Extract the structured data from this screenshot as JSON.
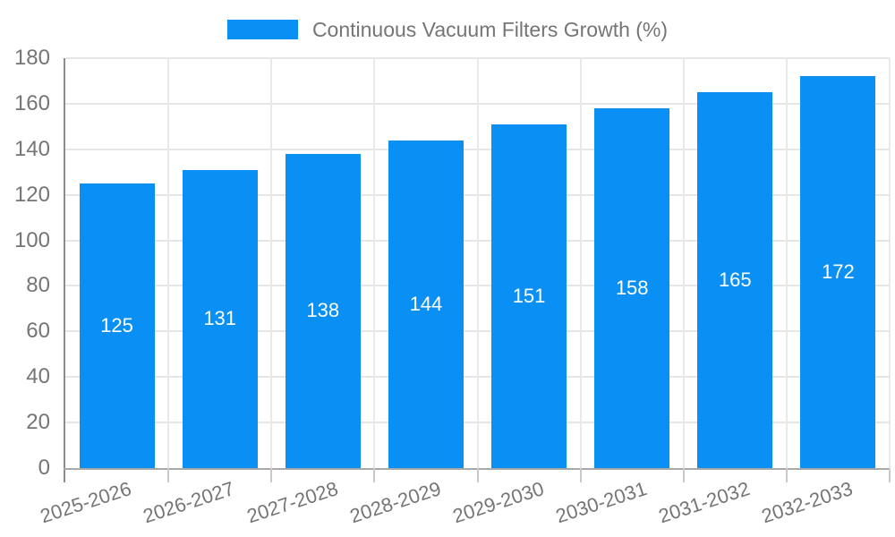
{
  "legend": {
    "label": "Continuous Vacuum Filters Growth (%)"
  },
  "chart_data": {
    "type": "bar",
    "title": "",
    "categories": [
      "2025-2026",
      "2026-2027",
      "2027-2028",
      "2028-2029",
      "2029-2030",
      "2030-2031",
      "2031-2032",
      "2032-2033"
    ],
    "values": [
      125,
      131,
      138,
      144,
      151,
      158,
      165,
      172
    ],
    "series_name": "Continuous Vacuum Filters Growth (%)",
    "xlabel": "",
    "ylabel": "",
    "ylim": [
      0,
      180
    ],
    "yticks": [
      0,
      20,
      40,
      60,
      80,
      100,
      120,
      140,
      160,
      180
    ],
    "grid": true,
    "legend_position": "top",
    "value_labels": "inside-center",
    "colors": {
      "bar": "#0a90f5",
      "value_label": "#ffffff",
      "axis_line": "#8c8c8c",
      "gridline": "#e6e6e6",
      "tick_text": "#757575",
      "legend_text": "#757575",
      "background": "#ffffff"
    }
  }
}
